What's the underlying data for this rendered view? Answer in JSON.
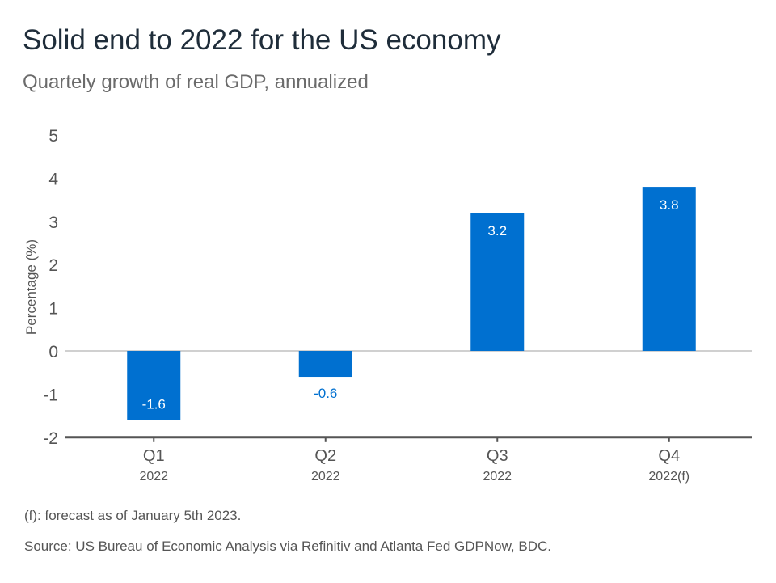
{
  "title": "Solid end to 2022 for the US economy",
  "subtitle": "Quartely growth of real GDP, annualized",
  "footnote": "(f): forecast as of January 5th 2023.",
  "source": "Source: US Bureau of Economic Analysis via Refinitiv and Atlanta Fed GDPNow, BDC.",
  "colors": {
    "bar": "#0070d0",
    "text": "#555555",
    "title": "#1f2d3a"
  },
  "chart_data": {
    "type": "bar",
    "categories": [
      "Q1",
      "Q2",
      "Q3",
      "Q4"
    ],
    "category_sublabels": [
      "2022",
      "2022",
      "2022",
      "2022(f)"
    ],
    "values": [
      -1.6,
      -0.6,
      3.2,
      3.8
    ],
    "data_labels": [
      "-1.6",
      "-0.6",
      "3.2",
      "3.8"
    ],
    "ylabel": "Percentage (%)",
    "xlabel": "",
    "ylim": [
      -2,
      5
    ],
    "yticks": [
      "-2",
      "-1",
      "0",
      "1",
      "2",
      "3",
      "4",
      "5"
    ],
    "grid": false,
    "legend": "none"
  }
}
